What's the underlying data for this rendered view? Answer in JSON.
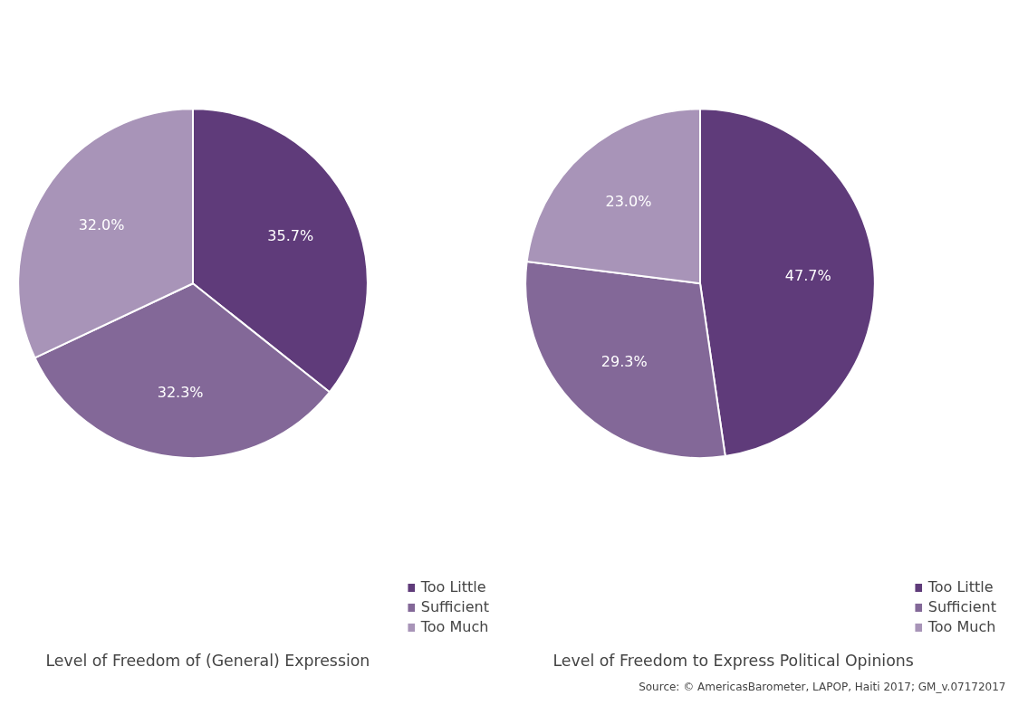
{
  "chart_data": [
    {
      "type": "pie",
      "title": "Level of Freedom of (General) Expression",
      "categories": [
        "Too Little",
        "Sufficient",
        "Too Much"
      ],
      "values": [
        35.7,
        32.3,
        32.0
      ],
      "colors": [
        "#5f3b7a",
        "#836898",
        "#a894b8"
      ],
      "value_labels": [
        "35.7%",
        "32.3%",
        "32.0%"
      ],
      "legend": "bottom right"
    },
    {
      "type": "pie",
      "title": "Level of Freedom to Express Political Opinions",
      "categories": [
        "Too Little",
        "Sufficient",
        "Too Much"
      ],
      "values": [
        47.7,
        29.3,
        23.0
      ],
      "colors": [
        "#5f3b7a",
        "#836898",
        "#a894b8"
      ],
      "value_labels": [
        "47.7%",
        "29.3%",
        "23.0%"
      ],
      "legend": "bottom right",
      "annotations": [
        "Source: © AmericasBarometer, LAPOP, Haiti 2017; GM_v.07172017"
      ]
    }
  ]
}
